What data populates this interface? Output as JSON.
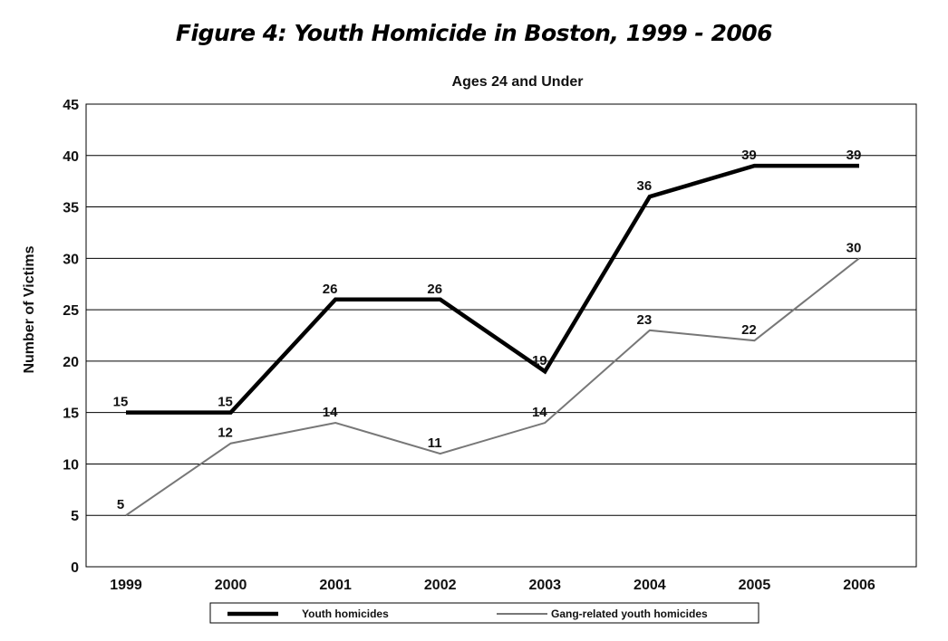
{
  "figure": {
    "title": "Figure 4: Youth Homicide in Boston, 1999 - 2006"
  },
  "chart_data": {
    "type": "line",
    "title": "Figure 4: Youth Homicide in Boston, 1999 - 2006",
    "subtitle": "Ages 24 and Under",
    "xlabel": "",
    "ylabel": "Number of Victims",
    "categories": [
      "1999",
      "2000",
      "2001",
      "2002",
      "2003",
      "2004",
      "2005",
      "2006"
    ],
    "ylim": [
      0,
      45
    ],
    "yticks": [
      "0",
      "5",
      "10",
      "15",
      "20",
      "25",
      "30",
      "35",
      "40",
      "45"
    ],
    "grid": "horizontal",
    "legend_position": "bottom",
    "series": [
      {
        "name": "Youth homicides",
        "values": [
          15,
          15,
          26,
          26,
          19,
          36,
          39,
          39
        ],
        "labels": [
          "15",
          "15",
          "26",
          "26",
          "19",
          "36",
          "39",
          "39"
        ],
        "color": "#000000",
        "style": "thick"
      },
      {
        "name": "Gang-related youth homicides",
        "values": [
          5,
          12,
          14,
          11,
          14,
          23,
          22,
          30
        ],
        "labels": [
          "5",
          "12",
          "14",
          "11",
          "14",
          "23",
          "22",
          "30"
        ],
        "color": "#777777",
        "style": "thin"
      }
    ]
  }
}
